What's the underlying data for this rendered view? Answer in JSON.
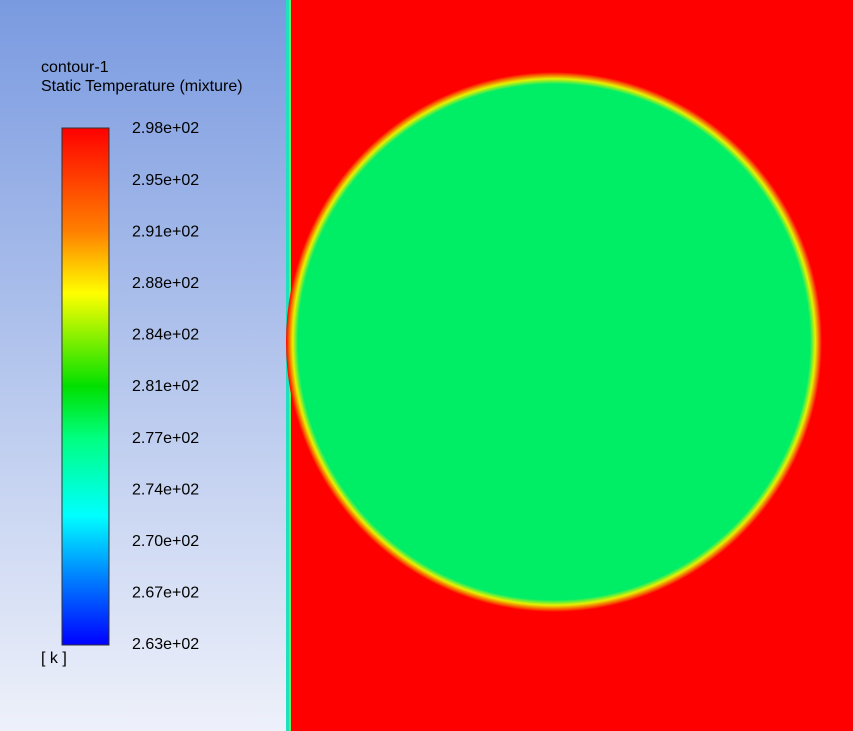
{
  "legend": {
    "title": "contour-1",
    "subtitle": "Static Temperature (mixture)",
    "ticks": [
      "2.98e+02",
      "2.95e+02",
      "2.91e+02",
      "2.88e+02",
      "2.84e+02",
      "2.81e+02",
      "2.77e+02",
      "2.74e+02",
      "2.70e+02",
      "2.67e+02",
      "2.63e+02"
    ],
    "unit": "[ k ]"
  }
}
